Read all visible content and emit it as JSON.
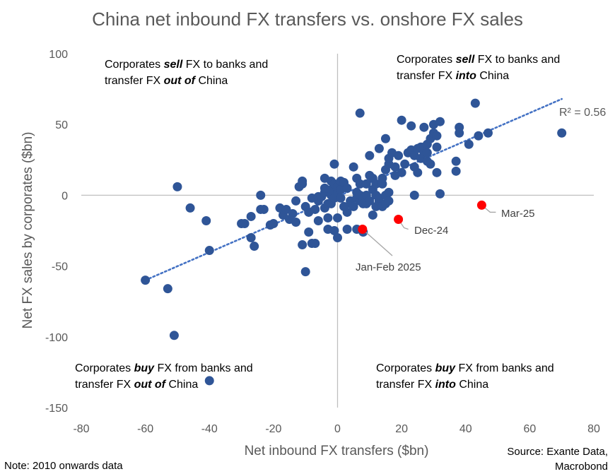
{
  "chart_data": {
    "type": "scatter",
    "title": "China net inbound FX transfers vs. onshore FX sales",
    "xlabel": "Net inbound FX transfers ($bn)",
    "ylabel": "Net FX sales by corporates ($bn)",
    "xlim": [
      -80,
      80
    ],
    "ylim": [
      -150,
      100
    ],
    "xticks": [
      -80,
      -60,
      -40,
      -20,
      0,
      20,
      40,
      60,
      80
    ],
    "yticks": [
      100,
      50,
      0,
      -50,
      -100,
      -150
    ],
    "trendline": {
      "type": "linear",
      "from": [
        -60,
        -60
      ],
      "to": [
        70,
        68
      ],
      "r2_label": "R² = 0.56"
    },
    "series": [
      {
        "name": "History",
        "color": "#2F5597",
        "points": [
          [
            -60,
            -60
          ],
          [
            -53,
            -66
          ],
          [
            -51,
            -99
          ],
          [
            -50,
            6
          ],
          [
            -46,
            -9
          ],
          [
            -41,
            -18
          ],
          [
            -40,
            -39
          ],
          [
            -40,
            -131
          ],
          [
            -30,
            -20
          ],
          [
            -29,
            -20
          ],
          [
            -27,
            -15
          ],
          [
            -27,
            -30
          ],
          [
            -26,
            -36
          ],
          [
            -24,
            0
          ],
          [
            -24,
            -10
          ],
          [
            -23,
            -10
          ],
          [
            -21,
            -21
          ],
          [
            -20,
            -20
          ],
          [
            -18,
            -9
          ],
          [
            -17,
            -14
          ],
          [
            -16,
            -10
          ],
          [
            -15,
            -17
          ],
          [
            -14,
            -13
          ],
          [
            -13,
            -4
          ],
          [
            -13,
            -19
          ],
          [
            -12,
            6
          ],
          [
            -11,
            8
          ],
          [
            -11,
            10
          ],
          [
            -11,
            -35
          ],
          [
            -10,
            -54
          ],
          [
            -10,
            -8
          ],
          [
            -9,
            -12
          ],
          [
            -9,
            -26
          ],
          [
            -8,
            -2
          ],
          [
            -8,
            -34
          ],
          [
            -7,
            -34
          ],
          [
            -7,
            -10
          ],
          [
            -6,
            -1
          ],
          [
            -6,
            -4
          ],
          [
            -6,
            -18
          ],
          [
            -5,
            -1
          ],
          [
            -4,
            2
          ],
          [
            -4,
            5
          ],
          [
            -4,
            12
          ],
          [
            -4,
            -9
          ],
          [
            -3,
            -16
          ],
          [
            -3,
            -6
          ],
          [
            -3,
            -24
          ],
          [
            -2,
            0
          ],
          [
            -2,
            4
          ],
          [
            -2,
            10
          ],
          [
            -2,
            -6
          ],
          [
            -1,
            -2
          ],
          [
            -1,
            22
          ],
          [
            -1,
            8
          ],
          [
            -1,
            -25
          ],
          [
            0,
            2
          ],
          [
            0,
            -16
          ],
          [
            0,
            6
          ],
          [
            0,
            -30
          ],
          [
            1,
            4
          ],
          [
            1,
            10
          ],
          [
            1,
            -2
          ],
          [
            2,
            -8
          ],
          [
            2,
            9
          ],
          [
            3,
            5
          ],
          [
            3,
            -12
          ],
          [
            3,
            -24
          ],
          [
            4,
            -4
          ],
          [
            4,
            -6
          ],
          [
            5,
            20
          ],
          [
            5,
            -8
          ],
          [
            6,
            12
          ],
          [
            6,
            2
          ],
          [
            6,
            -2
          ],
          [
            6,
            -24
          ],
          [
            7,
            -4
          ],
          [
            7,
            0
          ],
          [
            7,
            8
          ],
          [
            7,
            58
          ],
          [
            8,
            -2
          ],
          [
            8,
            -6
          ],
          [
            8,
            -26
          ],
          [
            9,
            0
          ],
          [
            9,
            8
          ],
          [
            9,
            -6
          ],
          [
            10,
            14
          ],
          [
            10,
            -4
          ],
          [
            10,
            28
          ],
          [
            11,
            4
          ],
          [
            11,
            12
          ],
          [
            11,
            -14
          ],
          [
            12,
            -8
          ],
          [
            12,
            8
          ],
          [
            12,
            0
          ],
          [
            13,
            -4
          ],
          [
            13,
            -2
          ],
          [
            13,
            33
          ],
          [
            14,
            -8
          ],
          [
            14,
            8
          ],
          [
            14,
            12
          ],
          [
            15,
            0
          ],
          [
            15,
            -6
          ],
          [
            15,
            18
          ],
          [
            15,
            40
          ],
          [
            16,
            -4
          ],
          [
            16,
            2
          ],
          [
            16,
            22
          ],
          [
            16,
            26
          ],
          [
            17,
            30
          ],
          [
            18,
            14
          ],
          [
            18,
            20
          ],
          [
            19,
            28
          ],
          [
            20,
            16
          ],
          [
            20,
            53
          ],
          [
            21,
            22
          ],
          [
            22,
            30
          ],
          [
            23,
            32
          ],
          [
            23,
            49
          ],
          [
            24,
            20
          ],
          [
            24,
            0
          ],
          [
            24,
            28
          ],
          [
            25,
            16
          ],
          [
            25,
            33
          ],
          [
            26,
            34
          ],
          [
            26,
            26
          ],
          [
            27,
            30
          ],
          [
            27,
            34
          ],
          [
            27,
            48
          ],
          [
            28,
            24
          ],
          [
            28,
            30
          ],
          [
            28,
            36
          ],
          [
            29,
            40
          ],
          [
            29,
            22
          ],
          [
            30,
            44
          ],
          [
            30,
            50
          ],
          [
            31,
            34
          ],
          [
            31,
            16
          ],
          [
            31,
            42
          ],
          [
            32,
            1
          ],
          [
            32,
            52
          ],
          [
            37,
            17
          ],
          [
            37,
            24
          ],
          [
            38,
            48
          ],
          [
            38,
            44
          ],
          [
            41,
            36
          ],
          [
            43,
            65
          ],
          [
            44,
            42
          ],
          [
            47,
            44
          ],
          [
            70,
            44
          ]
        ]
      },
      {
        "name": "Recent",
        "color": "#FF0000",
        "points": [
          {
            "x": 7.8,
            "y": -24,
            "label": "Jan-Feb 2025"
          },
          {
            "x": 19,
            "y": -17,
            "label": "Dec-24"
          },
          {
            "x": 45,
            "y": -7,
            "label": "Mar-25"
          }
        ]
      }
    ],
    "quadrant_labels": [
      {
        "lead": "Corporates ",
        "verb": "sell",
        "mid": " FX to banks and",
        "line2a": "transfer FX ",
        "dir": "out of",
        "line2b": " China"
      },
      {
        "lead": "Corporates ",
        "verb": "sell",
        "mid": " FX to banks and",
        "line2a": "transfer FX ",
        "dir": "into",
        "line2b": " China"
      },
      {
        "lead": "Corporates ",
        "verb": "buy",
        "mid": " FX from banks and",
        "line2a": "transfer FX ",
        "dir": "out of",
        "line2b": " China"
      },
      {
        "lead": "Corporates ",
        "verb": "buy",
        "mid": " FX from banks and",
        "line2a": "transfer FX ",
        "dir": "into",
        "line2b": " China"
      }
    ]
  },
  "footer": {
    "note": "Note: 2010 onwards data",
    "source_line1": "Source: Exante Data,",
    "source_line2": "Macrobond"
  }
}
